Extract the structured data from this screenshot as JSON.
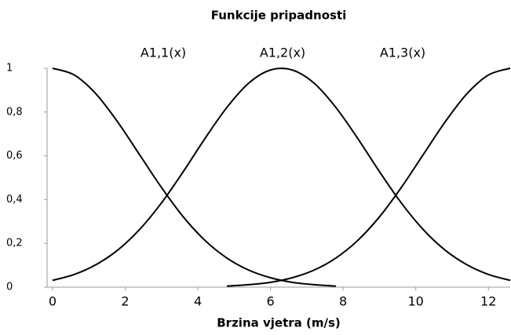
{
  "chart_data": {
    "type": "line",
    "title": "Funkcije pripadnosti",
    "x_label": "Brzina vjetra (m/s)",
    "x": [
      0,
      0.6,
      1.2,
      1.8,
      2.4,
      3.0,
      3.6,
      4.2,
      4.8,
      5.4,
      6.0,
      6.6,
      7.2,
      7.8,
      8.4,
      9.0,
      9.6,
      10.2,
      10.8,
      11.4,
      12.0,
      12.6
    ],
    "series": [
      {
        "name": "A1,1(x)",
        "color": "#000000",
        "values": [
          1,
          0.969,
          0.882,
          0.753,
          0.604,
          0.455,
          0.321,
          0.213,
          0.133,
          0.078,
          0.043,
          0.022,
          0.011,
          0.005,
          null,
          null,
          null,
          null,
          null,
          null,
          null,
          null
        ]
      },
      {
        "name": "A1,2(x)",
        "color": "#000000",
        "values": [
          0.031,
          0.058,
          0.103,
          0.17,
          0.264,
          0.385,
          0.528,
          0.68,
          0.821,
          0.932,
          0.992,
          0.992,
          0.932,
          0.821,
          0.68,
          0.528,
          0.385,
          0.264,
          0.17,
          0.103,
          0.058,
          0.031
        ]
      },
      {
        "name": "A1,3(x)",
        "color": "#000000",
        "values": [
          null,
          null,
          null,
          null,
          null,
          null,
          null,
          null,
          0.005,
          0.011,
          0.022,
          0.043,
          0.078,
          0.133,
          0.213,
          0.321,
          0.455,
          0.604,
          0.753,
          0.882,
          0.969,
          1
        ]
      }
    ],
    "xlim": [
      -0.15,
      12.6
    ],
    "xticks": [
      0,
      2,
      4,
      6,
      8,
      10,
      12
    ],
    "ylim": [
      0,
      1
    ],
    "yticks": [
      0,
      {
        "value": 0.2,
        "label": "0,2"
      },
      {
        "value": 0.4,
        "label": "0,4"
      },
      {
        "value": 0.6,
        "label": "0,6"
      },
      {
        "value": 0.8,
        "label": "0,8"
      },
      1
    ],
    "grid": false
  }
}
